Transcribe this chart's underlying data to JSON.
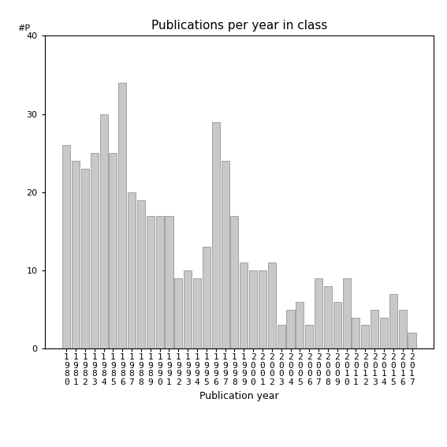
{
  "title": "Publications per year in class",
  "xlabel": "Publication year",
  "ylabel": "#P",
  "years": [
    "1980",
    "1981",
    "1982",
    "1983",
    "1984",
    "1985",
    "1986",
    "1987",
    "1988",
    "1989",
    "1990",
    "1991",
    "1992",
    "1993",
    "1994",
    "1995",
    "1996",
    "1997",
    "1998",
    "1999",
    "2000",
    "2001",
    "2002",
    "2003",
    "2004",
    "2005",
    "2006",
    "2007",
    "2008",
    "2009",
    "2010",
    "2011",
    "2012",
    "2013",
    "2014",
    "2015",
    "2016",
    "2017"
  ],
  "values": [
    26,
    24,
    23,
    25,
    30,
    25,
    34,
    20,
    19,
    17,
    17,
    17,
    9,
    10,
    9,
    13,
    29,
    24,
    17,
    11,
    10,
    10,
    11,
    3,
    5,
    6,
    3,
    9,
    8,
    6,
    9,
    4,
    3,
    5,
    4,
    7,
    5,
    2
  ],
  "bar_color": "#c8c8c8",
  "bar_edgecolor": "#888888",
  "ylim": [
    0,
    40
  ],
  "yticks": [
    0,
    10,
    20,
    30,
    40
  ],
  "figsize": [
    5.67,
    5.67
  ],
  "dpi": 100,
  "title_fontsize": 11,
  "xlabel_fontsize": 9,
  "tick_fontsize": 8
}
